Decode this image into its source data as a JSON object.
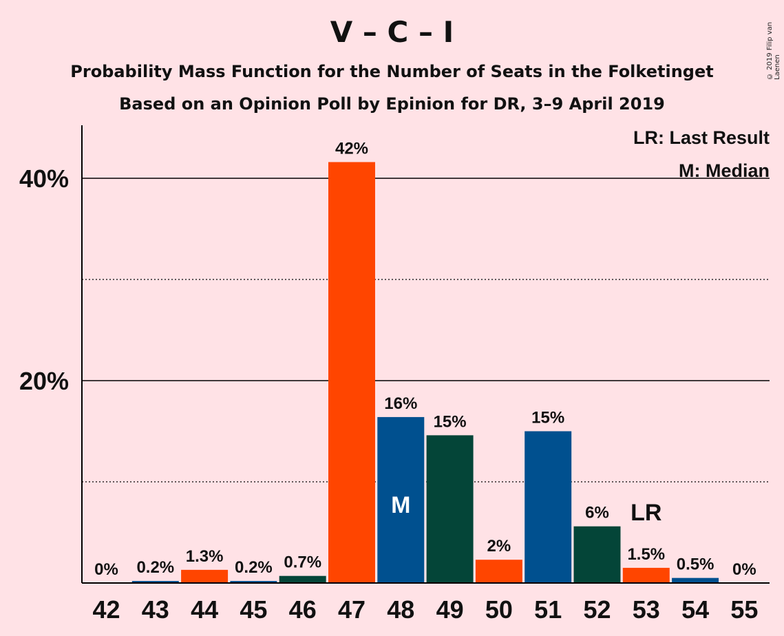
{
  "chart_data": {
    "type": "bar",
    "title": "V – C – I",
    "subtitle": "Probability Mass Function for the Number of Seats in the Folketinget",
    "subtitle2": "Based on an Opinion Poll by Epinion for DR, 3–9 April 2019",
    "copyright": "© 2019 Filip van Laenen",
    "categories": [
      "42",
      "43",
      "44",
      "45",
      "46",
      "47",
      "48",
      "49",
      "50",
      "51",
      "52",
      "53",
      "54",
      "55"
    ],
    "values": [
      0,
      0.2,
      1.3,
      0.2,
      0.7,
      41.6,
      16.4,
      14.6,
      2.3,
      15.0,
      5.6,
      1.5,
      0.5,
      0
    ],
    "value_labels": [
      "0%",
      "0.2%",
      "1.3%",
      "0.2%",
      "0.7%",
      "42%",
      "16%",
      "15%",
      "2%",
      "15%",
      "6%",
      "1.5%",
      "0.5%",
      "0%"
    ],
    "bar_colors": [
      "#FF4500",
      "#00508F",
      "#FF4500",
      "#00508F",
      "#044538",
      "#FF4500",
      "#00508F",
      "#044538",
      "#FF4500",
      "#00508F",
      "#044538",
      "#FF4500",
      "#00508F",
      "#044538"
    ],
    "ylim": [
      0,
      45
    ],
    "yticks": [
      {
        "value": 20,
        "label": "20%"
      },
      {
        "value": 40,
        "label": "40%"
      }
    ],
    "minor_gridlines": [
      10,
      30
    ],
    "median_index": 6,
    "median_marker": "M",
    "last_result_index": 11,
    "last_result_marker": "LR",
    "legend": [
      "LR: Last Result",
      "M: Median"
    ],
    "legend_position": "top-right"
  }
}
